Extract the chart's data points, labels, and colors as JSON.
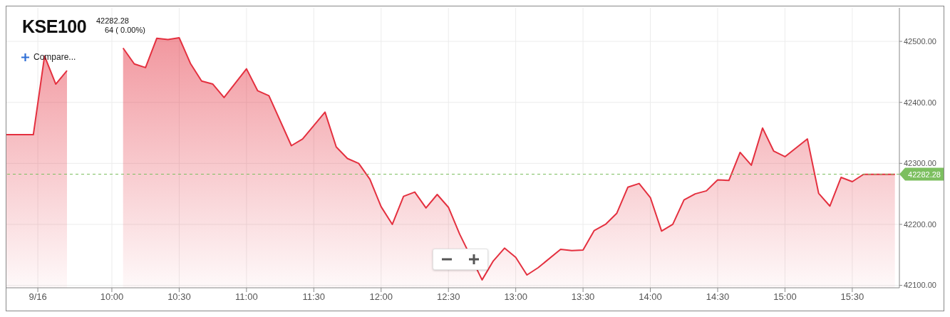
{
  "chart_data": {
    "type": "area",
    "title": "KSE100",
    "annotations": [
      "42282.28",
      "64 ( 0.00%)",
      "Compare..."
    ],
    "x": [
      "--09-16T09:13",
      "--09-16T09:25",
      "--09-16T09:30",
      "--09-16T09:35",
      "--09-16T09:40",
      "--09-16T09:45",
      "--09-16T09:50",
      "--09-16T09:55",
      "--09-16T10:00",
      "--09-16T10:05",
      "--09-16T10:10",
      "--09-16T10:15",
      "--09-16T10:20",
      "--09-16T10:25",
      "--09-16T10:30",
      "--09-16T10:35",
      "--09-16T10:40",
      "--09-16T10:45",
      "--09-16T10:50",
      "--09-16T11:00",
      "--09-16T11:05",
      "--09-16T11:10",
      "--09-16T11:20",
      "--09-16T11:25",
      "--09-16T11:35",
      "--09-16T11:40",
      "--09-16T11:45",
      "--09-16T11:50",
      "--09-16T11:55",
      "--09-16T12:00",
      "--09-16T12:05",
      "--09-16T12:10",
      "--09-16T12:15",
      "--09-16T12:20",
      "--09-16T12:25",
      "--09-16T12:30",
      "--09-16T12:35",
      "--09-16T12:45",
      "--09-16T12:50",
      "--09-16T12:55",
      "--09-16T13:00",
      "--09-16T13:05",
      "--09-16T13:10",
      "--09-16T13:20",
      "--09-16T13:25",
      "--09-16T13:30",
      "--09-16T13:35",
      "--09-16T13:40",
      "--09-16T13:45",
      "--09-16T13:50",
      "--09-16T13:55",
      "--09-16T14:00",
      "--09-16T14:05",
      "--09-16T14:10",
      "--09-16T14:15",
      "--09-16T14:20",
      "--09-16T14:25",
      "--09-16T14:30",
      "--09-16T14:35",
      "--09-16T14:40",
      "--09-16T14:45",
      "--09-16T14:50",
      "--09-16T14:55",
      "--09-16T15:00",
      "--09-16T15:10",
      "--09-16T15:15",
      "--09-16T15:20",
      "--09-16T15:25",
      "--09-16T15:30",
      "--09-16T15:35",
      "--09-16T15:49"
    ],
    "series": [
      {
        "color": "#e4303f",
        "values": [
          42347,
          42347,
          42476,
          42430,
          42452,
          null,
          null,
          null,
          null,
          42489,
          42463,
          42457,
          42505,
          42503,
          42506,
          42464,
          42435,
          42430,
          42408,
          42455,
          42419,
          42411,
          42329,
          42340,
          42384,
          42327,
          42308,
          42300,
          42274,
          42229,
          42200,
          42246,
          42253,
          42227,
          42249,
          42228,
          42184,
          42109,
          42140,
          42161,
          42146,
          42117,
          42129,
          42159,
          42157,
          42158,
          42190,
          42200,
          42218,
          42261,
          42267,
          42244,
          42189,
          42200,
          42240,
          42250,
          42255,
          42273,
          42272,
          42318,
          42297,
          42358,
          42320,
          42311,
          42340,
          42251,
          42230,
          42277,
          42270,
          42282,
          42282
        ]
      }
    ],
    "xlim": [
      "--09-16T09:13",
      "--09-16T15:51"
    ],
    "xticks": [
      {
        "value": "--09-16T09:27",
        "label": "9/16"
      },
      {
        "value": "--09-16T10:00",
        "label": "10:00"
      },
      {
        "value": "--09-16T10:30",
        "label": "10:30"
      },
      {
        "value": "--09-16T11:00",
        "label": "11:00"
      },
      {
        "value": "--09-16T11:30",
        "label": "11:30"
      },
      {
        "value": "--09-16T12:00",
        "label": "12:00"
      },
      {
        "value": "--09-16T12:30",
        "label": "12:30"
      },
      {
        "value": "--09-16T13:00",
        "label": "13:00"
      },
      {
        "value": "--09-16T13:30",
        "label": "13:30"
      },
      {
        "value": "--09-16T14:00",
        "label": "14:00"
      },
      {
        "value": "--09-16T14:30",
        "label": "14:30"
      },
      {
        "value": "--09-16T15:00",
        "label": "15:00"
      },
      {
        "value": "--09-16T15:30",
        "label": "15:30"
      }
    ],
    "ylim": [
      42096,
      42555
    ],
    "yticks": [
      {
        "value": 42100,
        "label": "42100.00"
      },
      {
        "value": 42200,
        "label": "42200.00"
      },
      {
        "value": 42300,
        "label": "42300.00"
      },
      {
        "value": 42400,
        "label": "42400.00"
      },
      {
        "value": 42500,
        "label": "42500.00"
      }
    ],
    "ref_lines": [
      {
        "axis": "y",
        "value": 42282.28,
        "label": "42282.28",
        "color": "#7cbf5f",
        "line_style": "dashed"
      }
    ],
    "grid": true
  }
}
